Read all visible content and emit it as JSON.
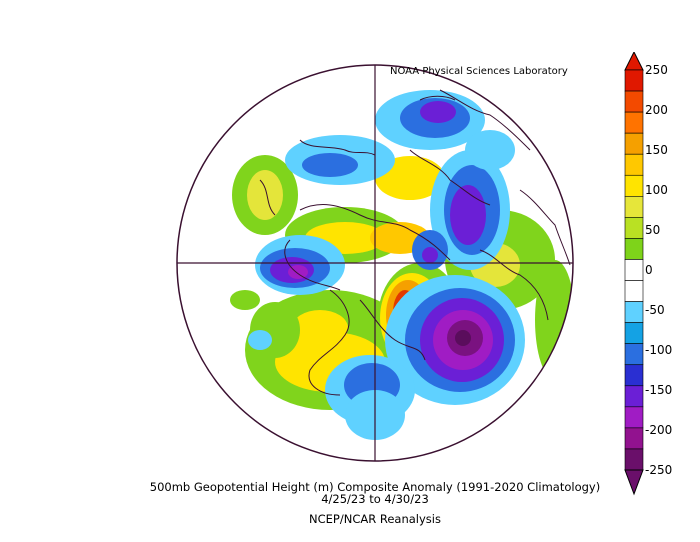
{
  "credit": "NOAA Physical Sciences Laboratory",
  "caption": {
    "line1": "500mb Geopotential Height (m) Composite Anomaly (1991-2020 Climatology)",
    "line2": "4/25/23  to 4/30/23",
    "line3": "NCEP/NCAR Reanalysis"
  },
  "colorbar": {
    "ticks": [
      "250",
      "200",
      "150",
      "100",
      "50",
      "0",
      "-50",
      "-100",
      "-150",
      "-200",
      "-250"
    ],
    "colors": [
      "#6a0f6a",
      "#92128f",
      "#a01cc4",
      "#6b1fd6",
      "#2a2fd2",
      "#2b6fe0",
      "#14a2e4",
      "#5fd1ff",
      "#ffffff",
      "#ffffff",
      "#7ed31a",
      "#b9e123",
      "#e6e63a",
      "#ffe400",
      "#ffc800",
      "#f5a000",
      "#ff7300",
      "#f34a00",
      "#e01800"
    ]
  },
  "colors": {
    "coast": "#3a1030",
    "grid": "#3a1030"
  },
  "map": {
    "projection": "north polar stereographic",
    "center_lon_at_bottom": "-90"
  }
}
